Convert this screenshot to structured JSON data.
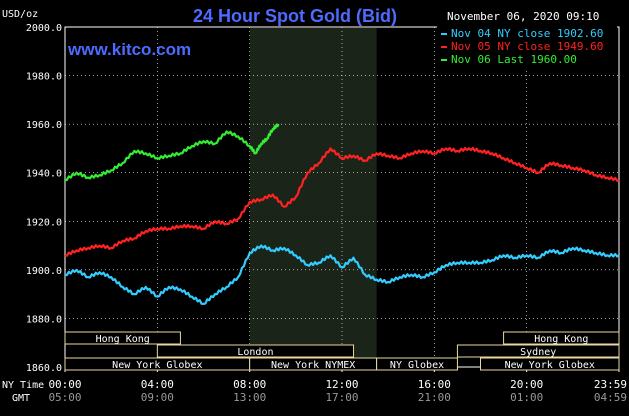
{
  "header": {
    "ylabel": "USD/oz",
    "title": "24 Hour Spot Gold (Bid)",
    "timestamp": "November 06, 2020 09:10",
    "brand": "www.kitco.com"
  },
  "legend": [
    {
      "label": "Nov 04 NY close 1902.60",
      "color": "#33ccff"
    },
    {
      "label": "Nov 05 NY close 1949.60",
      "color": "#ff2222"
    },
    {
      "label": "Nov 06 Last 1960.00",
      "color": "#33ee33"
    }
  ],
  "axis": {
    "y_ticks": [
      "2000.0",
      "1980.0",
      "1960.0",
      "1940.0",
      "1920.0",
      "1900.0",
      "1880.0",
      "1860.0"
    ],
    "ny_label": "NY Time",
    "gmt_label": "GMT",
    "ny_ticks": [
      "00:00",
      "04:00",
      "08:00",
      "12:00",
      "16:00",
      "20:00",
      "23:59"
    ],
    "gmt_ticks": [
      "05:00",
      "09:00",
      "13:00",
      "17:00",
      "21:00",
      "01:00",
      "04:59"
    ]
  },
  "sessions": [
    {
      "label": "Hong Kong",
      "start_h": 0.0,
      "end_h": 5.0,
      "row": 0
    },
    {
      "label": "London",
      "start_h": 4.0,
      "end_h": 12.5,
      "row": 1
    },
    {
      "label": "New York Globex",
      "start_h": 0.0,
      "end_h": 8.0,
      "row": 2
    },
    {
      "label": "New York NYMEX",
      "start_h": 8.0,
      "end_h": 13.5,
      "row": 2
    },
    {
      "label": "NY Globex",
      "start_h": 13.5,
      "end_h": 17.0,
      "row": 2
    },
    {
      "label": "Hong Kong",
      "start_h": 19.0,
      "end_h": 24.0,
      "row": 0
    },
    {
      "label": "Sydney",
      "start_h": 17.0,
      "end_h": 24.0,
      "row": 1
    },
    {
      "label": "New York Globex",
      "start_h": 18.0,
      "end_h": 24.0,
      "row": 2
    }
  ],
  "chart_data": {
    "type": "line",
    "ylim": [
      1860,
      2000
    ],
    "xlim_hours": [
      0,
      24
    ],
    "shaded_region_hours": [
      8.0,
      13.5
    ],
    "series": [
      {
        "name": "Nov 04 NY close 1902.60",
        "color": "#33ccff",
        "points": [
          [
            0,
            1898
          ],
          [
            0.5,
            1900
          ],
          [
            1,
            1897
          ],
          [
            1.5,
            1899
          ],
          [
            2,
            1897
          ],
          [
            2.5,
            1893
          ],
          [
            3,
            1890
          ],
          [
            3.5,
            1893
          ],
          [
            4,
            1889
          ],
          [
            4.5,
            1893
          ],
          [
            5,
            1892
          ],
          [
            5.5,
            1889
          ],
          [
            6,
            1886
          ],
          [
            6.5,
            1890
          ],
          [
            7,
            1893
          ],
          [
            7.5,
            1897
          ],
          [
            8,
            1907
          ],
          [
            8.5,
            1910
          ],
          [
            9,
            1908
          ],
          [
            9.5,
            1909
          ],
          [
            10,
            1906
          ],
          [
            10.5,
            1902
          ],
          [
            11,
            1903
          ],
          [
            11.5,
            1906
          ],
          [
            12,
            1901
          ],
          [
            12.5,
            1905
          ],
          [
            13,
            1898
          ],
          [
            13.5,
            1896
          ],
          [
            14,
            1895
          ],
          [
            14.5,
            1897
          ],
          [
            15,
            1898
          ],
          [
            15.5,
            1897
          ],
          [
            16,
            1899
          ],
          [
            16.5,
            1902
          ],
          [
            17,
            1903
          ],
          [
            17.5,
            1903
          ],
          [
            18,
            1903
          ],
          [
            18.5,
            1904
          ],
          [
            19,
            1906
          ],
          [
            19.5,
            1905
          ],
          [
            20,
            1906
          ],
          [
            20.5,
            1905
          ],
          [
            21,
            1908
          ],
          [
            21.5,
            1907
          ],
          [
            22,
            1909
          ],
          [
            22.5,
            1908
          ],
          [
            23,
            1907
          ],
          [
            23.5,
            1906
          ],
          [
            24,
            1906
          ]
        ]
      },
      {
        "name": "Nov 05 NY close 1949.60",
        "color": "#ff2222",
        "points": [
          [
            0,
            1906
          ],
          [
            0.5,
            1908
          ],
          [
            1,
            1909
          ],
          [
            1.5,
            1910
          ],
          [
            2,
            1909
          ],
          [
            2.5,
            1912
          ],
          [
            3,
            1913
          ],
          [
            3.5,
            1916
          ],
          [
            4,
            1917
          ],
          [
            4.5,
            1917
          ],
          [
            5,
            1918
          ],
          [
            5.5,
            1918
          ],
          [
            6,
            1917
          ],
          [
            6.5,
            1920
          ],
          [
            7,
            1919
          ],
          [
            7.5,
            1921
          ],
          [
            8,
            1928
          ],
          [
            8.5,
            1929
          ],
          [
            9,
            1931
          ],
          [
            9.5,
            1926
          ],
          [
            10,
            1930
          ],
          [
            10.5,
            1940
          ],
          [
            11,
            1944
          ],
          [
            11.5,
            1950
          ],
          [
            12,
            1946
          ],
          [
            12.5,
            1947
          ],
          [
            13,
            1945
          ],
          [
            13.5,
            1948
          ],
          [
            14,
            1947
          ],
          [
            14.5,
            1946
          ],
          [
            15,
            1948
          ],
          [
            15.5,
            1949
          ],
          [
            16,
            1948
          ],
          [
            16.5,
            1950
          ],
          [
            17,
            1949
          ],
          [
            17.5,
            1950
          ],
          [
            18,
            1949
          ],
          [
            18.5,
            1948
          ],
          [
            19,
            1946
          ],
          [
            19.5,
            1944
          ],
          [
            20,
            1942
          ],
          [
            20.5,
            1940
          ],
          [
            21,
            1944
          ],
          [
            21.5,
            1943
          ],
          [
            22,
            1942
          ],
          [
            22.5,
            1941
          ],
          [
            23,
            1939
          ],
          [
            23.5,
            1938
          ],
          [
            24,
            1937
          ]
        ]
      },
      {
        "name": "Nov 06 Last 1960.00",
        "color": "#33ee33",
        "points": [
          [
            0,
            1937
          ],
          [
            0.5,
            1940
          ],
          [
            1,
            1938
          ],
          [
            1.5,
            1939
          ],
          [
            2,
            1941
          ],
          [
            2.5,
            1944
          ],
          [
            3,
            1949
          ],
          [
            3.5,
            1948
          ],
          [
            4,
            1946
          ],
          [
            4.5,
            1947
          ],
          [
            5,
            1948
          ],
          [
            5.5,
            1951
          ],
          [
            6,
            1953
          ],
          [
            6.5,
            1952
          ],
          [
            7,
            1957
          ],
          [
            7.5,
            1955
          ],
          [
            8,
            1951
          ],
          [
            8.25,
            1948
          ],
          [
            8.5,
            1952
          ],
          [
            8.75,
            1954
          ],
          [
            9,
            1958
          ],
          [
            9.25,
            1960
          ]
        ]
      }
    ]
  }
}
